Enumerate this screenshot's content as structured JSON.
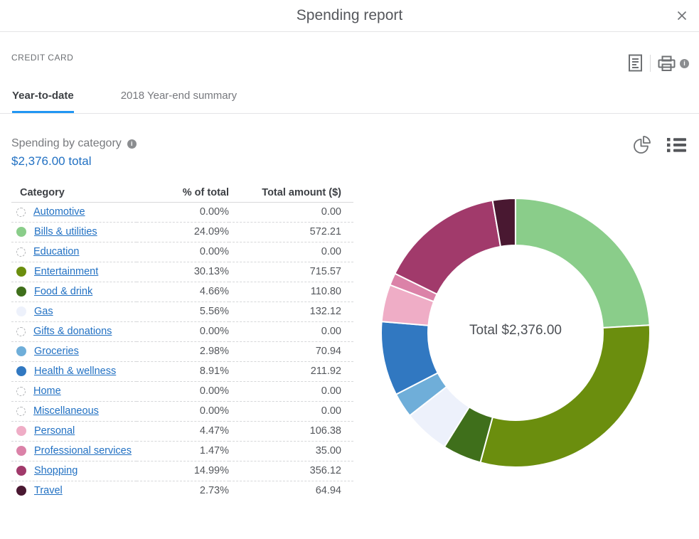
{
  "window": {
    "title": "Spending report",
    "close_icon": "close-x"
  },
  "header": {
    "account_label": "CREDIT CARD",
    "icons": {
      "report": "document-report-icon",
      "print": "printer-icon",
      "print_info": "info-icon"
    }
  },
  "tabs": [
    {
      "label": "Year-to-date",
      "active": true
    },
    {
      "label": "2018 Year-end summary",
      "active": false
    }
  ],
  "section": {
    "title": "Spending by category",
    "info_icon": "info-icon",
    "total_link": "$2,376.00 total"
  },
  "view_toggle": {
    "options": [
      "pie-chart-view",
      "list-view"
    ],
    "selected": "list-view"
  },
  "table": {
    "columns": [
      "Category",
      "% of total",
      "Total amount ($)"
    ]
  },
  "chart_data": {
    "type": "pie",
    "subtype": "donut",
    "title": "Spending by category",
    "center_label": "Total $2,376.00",
    "total": 2376.0,
    "start_angle": 0,
    "direction": "clockwise",
    "inner_radius_ratio": 0.65,
    "legend_position": "table-left",
    "categories": [
      "Automotive",
      "Bills & utilities",
      "Education",
      "Entertainment",
      "Food & drink",
      "Gas",
      "Gifts & donations",
      "Groceries",
      "Health & wellness",
      "Home",
      "Miscellaneous",
      "Personal",
      "Professional services",
      "Shopping",
      "Travel"
    ],
    "series": [
      {
        "name": "Automotive",
        "percent": 0.0,
        "amount": 0.0,
        "color": null
      },
      {
        "name": "Bills & utilities",
        "percent": 24.09,
        "amount": 572.21,
        "color": "#8ACD8A"
      },
      {
        "name": "Education",
        "percent": 0.0,
        "amount": 0.0,
        "color": null
      },
      {
        "name": "Entertainment",
        "percent": 30.13,
        "amount": 715.57,
        "color": "#6B8E0E"
      },
      {
        "name": "Food & drink",
        "percent": 4.66,
        "amount": 110.8,
        "color": "#3F6F1B"
      },
      {
        "name": "Gas",
        "percent": 5.56,
        "amount": 132.12,
        "color": "#EDF1FB"
      },
      {
        "name": "Gifts & donations",
        "percent": 0.0,
        "amount": 0.0,
        "color": null
      },
      {
        "name": "Groceries",
        "percent": 2.98,
        "amount": 70.94,
        "color": "#6FAED9"
      },
      {
        "name": "Health & wellness",
        "percent": 8.91,
        "amount": 211.92,
        "color": "#3178C1"
      },
      {
        "name": "Home",
        "percent": 0.0,
        "amount": 0.0,
        "color": null
      },
      {
        "name": "Miscellaneous",
        "percent": 0.0,
        "amount": 0.0,
        "color": null
      },
      {
        "name": "Personal",
        "percent": 4.47,
        "amount": 106.38,
        "color": "#EFADC6"
      },
      {
        "name": "Professional services",
        "percent": 1.47,
        "amount": 35.0,
        "color": "#DB82A8"
      },
      {
        "name": "Shopping",
        "percent": 14.99,
        "amount": 356.12,
        "color": "#A13A6B"
      },
      {
        "name": "Travel",
        "percent": 2.73,
        "amount": 64.94,
        "color": "#491831"
      }
    ]
  },
  "colors": {
    "tab_accent": "#2196f3",
    "link_blue": "#2271c3"
  }
}
